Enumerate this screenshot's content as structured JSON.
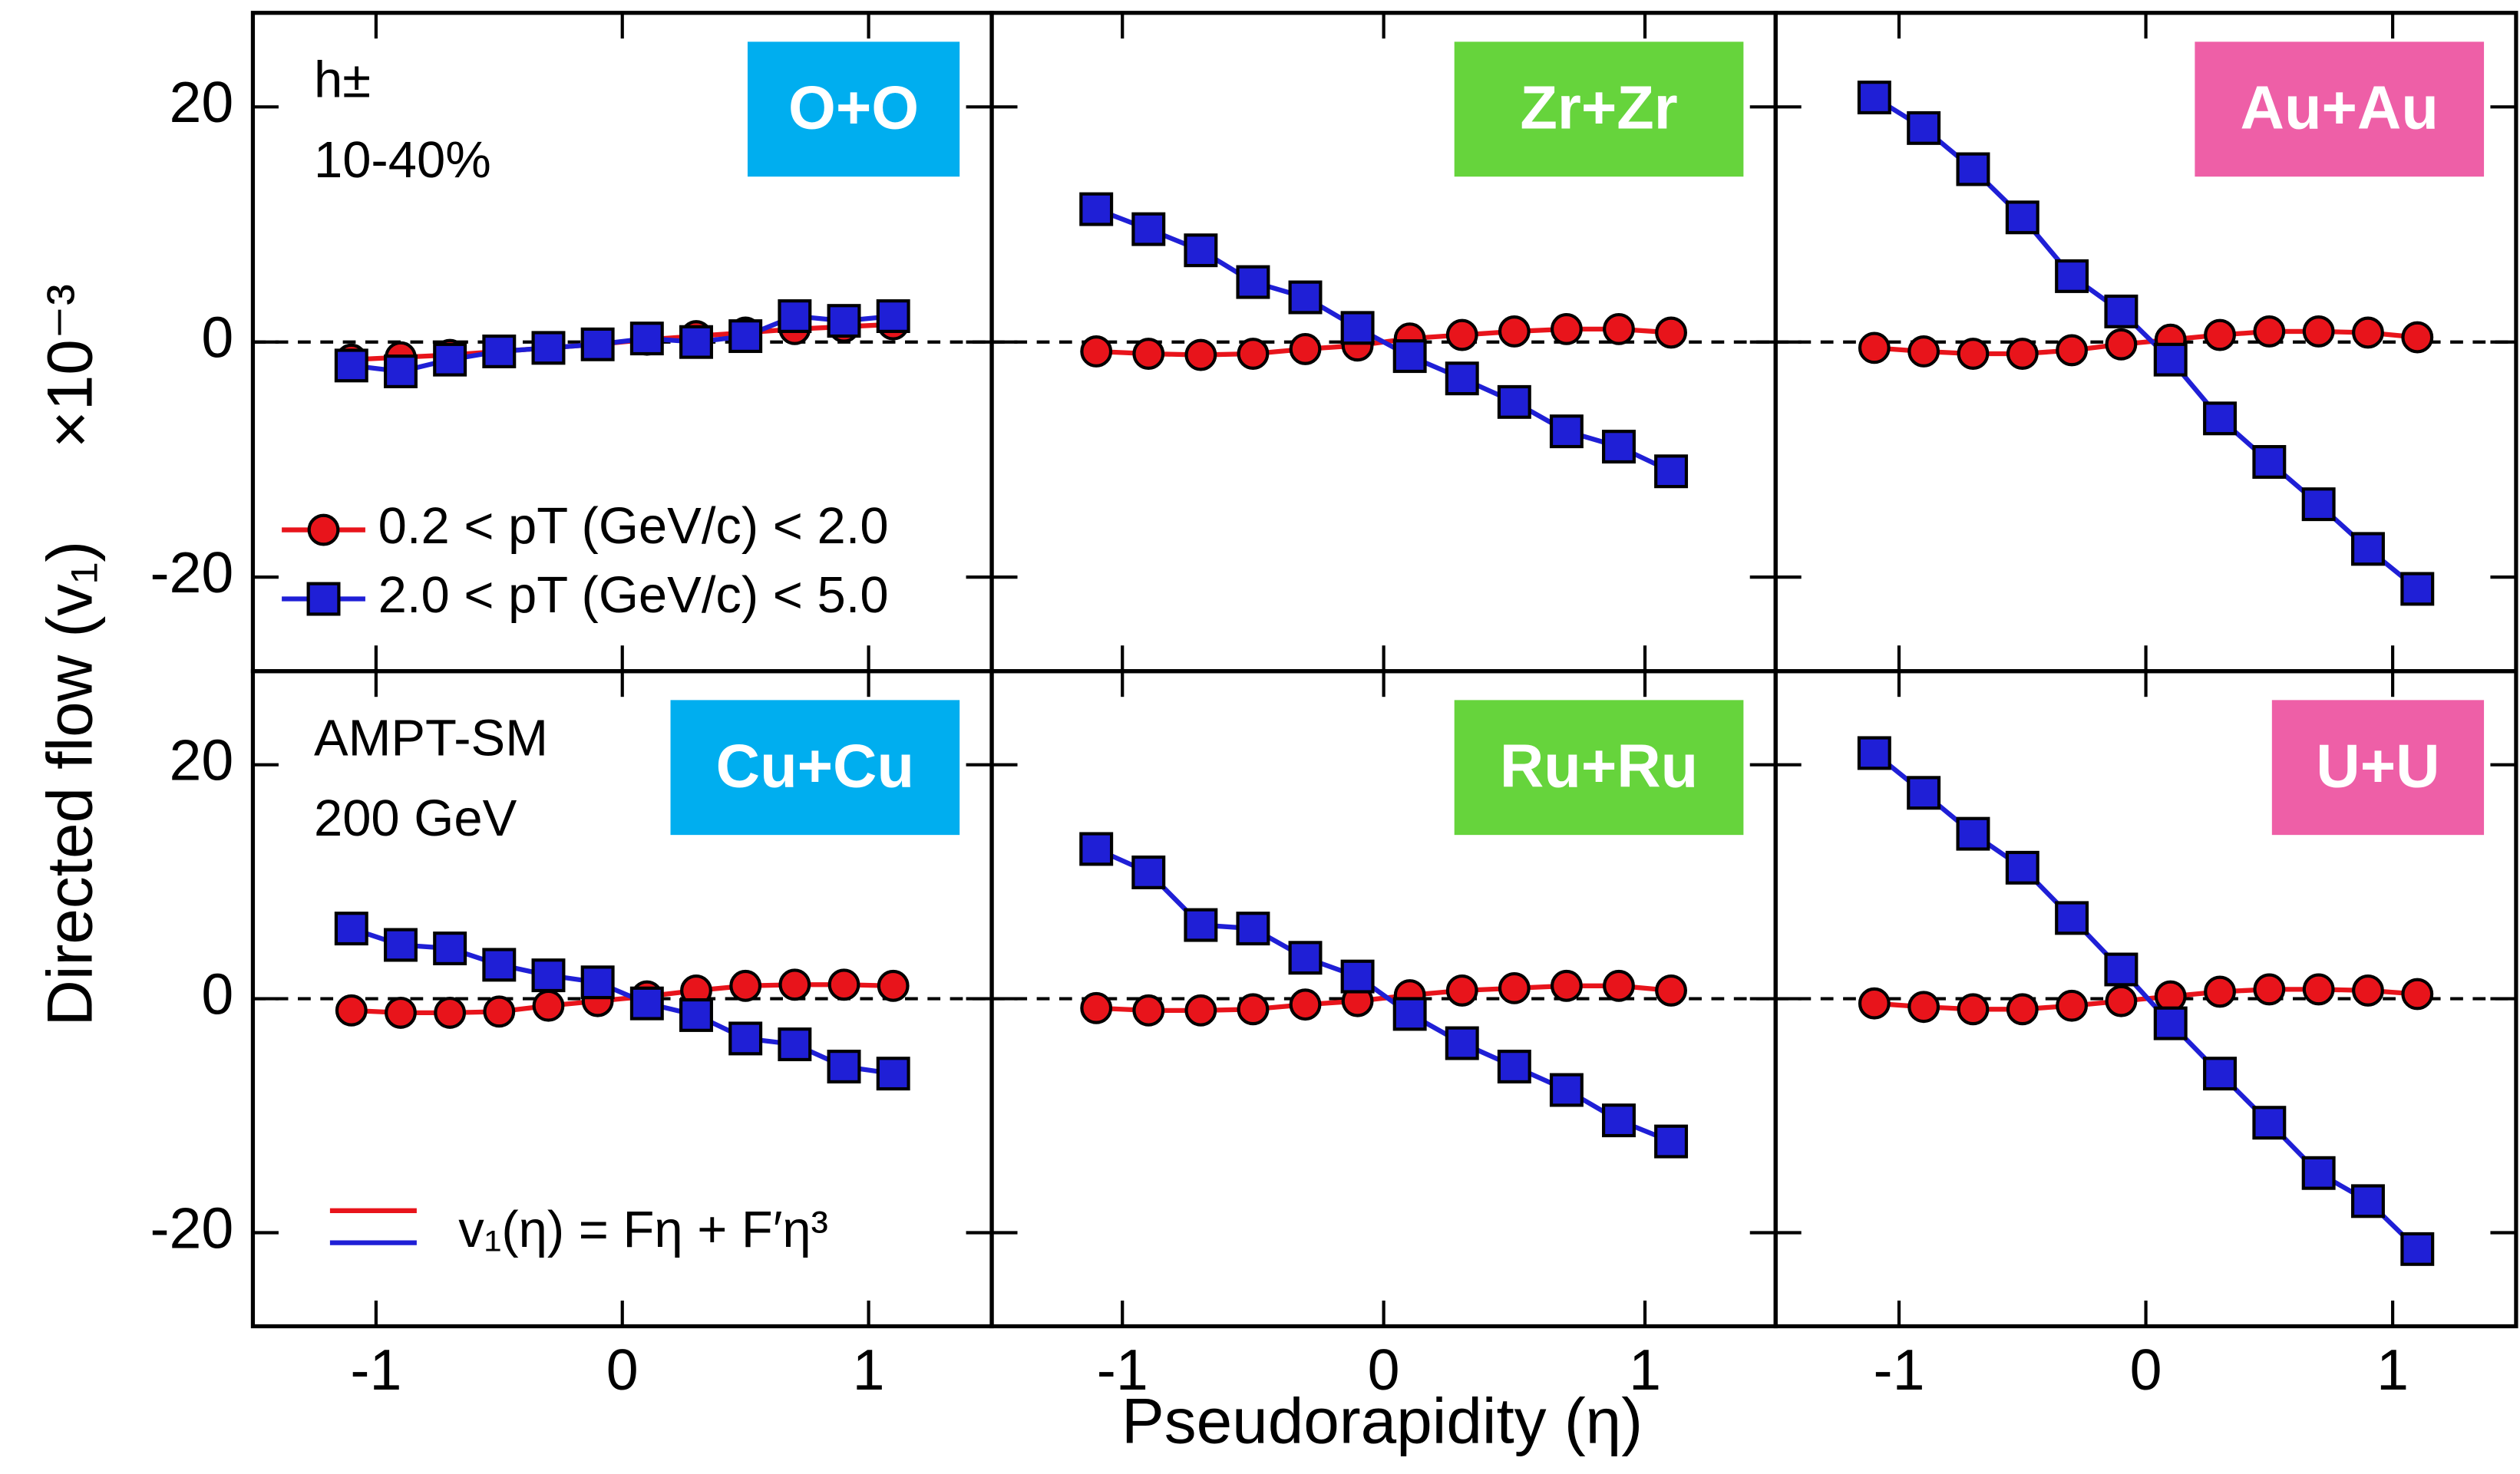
{
  "figure": {
    "xlabel": "Pseudorapidity (η)",
    "ylabel": "Directed flow (v₁)",
    "ylabel_scale": "×10⁻³"
  },
  "chart_data": [
    {
      "type": "line",
      "title": "O+O",
      "title_color": "#00aeef",
      "annotations": [
        "h±",
        "10-40%"
      ],
      "x": [
        -1.1,
        -0.9,
        -0.7,
        -0.5,
        -0.3,
        -0.1,
        0.1,
        0.3,
        0.5,
        0.7,
        0.9,
        1.1
      ],
      "series": [
        {
          "name": "0.2 < pT (GeV/c) < 2.0",
          "color": "#e8141b",
          "marker": "circle",
          "values": [
            -1.5,
            -1.3,
            -1.1,
            -0.8,
            -0.5,
            -0.2,
            0.2,
            0.5,
            0.8,
            1.1,
            1.3,
            1.5
          ]
        },
        {
          "name": "2.0 < pT (GeV/c) < 5.0",
          "color": "#1f1fd6",
          "marker": "square",
          "values": [
            -2,
            -2.5,
            -1.5,
            -0.8,
            -0.5,
            -0.2,
            0.3,
            0,
            0.5,
            2.2,
            1.8,
            2.2
          ]
        }
      ],
      "xlim": [
        -1.5,
        1.5
      ],
      "ylim": [
        -28,
        28
      ],
      "xticks": [
        -1,
        0,
        1
      ],
      "yticks": [
        -20,
        0,
        20
      ]
    },
    {
      "type": "line",
      "title": "Zr+Zr",
      "title_color": "#66d43c",
      "x": [
        -1.1,
        -0.9,
        -0.7,
        -0.5,
        -0.3,
        -0.1,
        0.1,
        0.3,
        0.5,
        0.7,
        0.9,
        1.1
      ],
      "series": [
        {
          "color": "#e8141b",
          "marker": "circle",
          "values": [
            -0.8,
            -1,
            -1.1,
            -1,
            -0.6,
            -0.3,
            0.3,
            0.6,
            0.9,
            1.1,
            1.1,
            0.8
          ]
        },
        {
          "color": "#1f1fd6",
          "marker": "square",
          "values": [
            11.3,
            9.6,
            7.8,
            5.1,
            3.8,
            1.2,
            -1.2,
            -3.1,
            -5.1,
            -7.6,
            -8.9,
            -11.0
          ]
        }
      ],
      "xlim": [
        -1.5,
        1.5
      ],
      "ylim": [
        -28,
        28
      ],
      "xticks": [
        -1,
        0,
        1
      ],
      "yticks": [
        -20,
        0,
        20
      ]
    },
    {
      "type": "line",
      "title": "Au+Au",
      "title_color": "#ee5fa7",
      "x": [
        -1.1,
        -0.9,
        -0.7,
        -0.5,
        -0.3,
        -0.1,
        0.1,
        0.3,
        0.5,
        0.7,
        0.9,
        1.1
      ],
      "series": [
        {
          "color": "#e8141b",
          "marker": "circle",
          "values": [
            -0.5,
            -0.8,
            -1,
            -1,
            -0.7,
            -0.2,
            0.2,
            0.6,
            0.9,
            0.9,
            0.8,
            0.4
          ]
        },
        {
          "color": "#1f1fd6",
          "marker": "square",
          "values": [
            20.8,
            18.2,
            14.7,
            10.6,
            5.6,
            2.6,
            -1.5,
            -6.5,
            -10.2,
            -13.8,
            -17.6,
            -21.0
          ]
        }
      ],
      "xlim": [
        -1.5,
        1.5
      ],
      "ylim": [
        -28,
        28
      ],
      "xticks": [
        -1,
        0,
        1
      ],
      "yticks": [
        -20,
        0,
        20
      ]
    },
    {
      "type": "line",
      "title": "Cu+Cu",
      "title_color": "#00aeef",
      "annotations": [
        "AMPT-SM",
        "200 GeV"
      ],
      "fit_label": "v₁(η) = Fη + F′η³",
      "x": [
        -1.1,
        -0.9,
        -0.7,
        -0.5,
        -0.3,
        -0.1,
        0.1,
        0.3,
        0.5,
        0.7,
        0.9,
        1.1
      ],
      "series": [
        {
          "color": "#e8141b",
          "marker": "circle",
          "values": [
            -1,
            -1.2,
            -1.2,
            -1.1,
            -0.6,
            -0.2,
            0.2,
            0.7,
            1.1,
            1.2,
            1.2,
            1.1
          ]
        },
        {
          "color": "#1f1fd6",
          "marker": "square",
          "values": [
            6.0,
            4.6,
            4.3,
            2.9,
            2.0,
            1.4,
            -0.4,
            -1.4,
            -3.4,
            -3.9,
            -5.8,
            -6.4
          ]
        }
      ],
      "xlim": [
        -1.5,
        1.5
      ],
      "ylim": [
        -28,
        28
      ],
      "xticks": [
        -1,
        0,
        1
      ],
      "yticks": [
        -20,
        0,
        20
      ]
    },
    {
      "type": "line",
      "title": "Ru+Ru",
      "title_color": "#66d43c",
      "x": [
        -1.1,
        -0.9,
        -0.7,
        -0.5,
        -0.3,
        -0.1,
        0.1,
        0.3,
        0.5,
        0.7,
        0.9,
        1.1
      ],
      "series": [
        {
          "color": "#e8141b",
          "marker": "circle",
          "values": [
            -0.8,
            -1,
            -1,
            -0.9,
            -0.5,
            -0.2,
            0.3,
            0.7,
            0.9,
            1.1,
            1.1,
            0.7
          ]
        },
        {
          "color": "#1f1fd6",
          "marker": "square",
          "values": [
            12.8,
            10.8,
            6.3,
            6.0,
            3.5,
            1.9,
            -1.3,
            -3.8,
            -5.8,
            -7.8,
            -10.4,
            -12.2
          ]
        }
      ],
      "xlim": [
        -1.5,
        1.5
      ],
      "ylim": [
        -28,
        28
      ],
      "xticks": [
        -1,
        0,
        1
      ],
      "yticks": [
        -20,
        0,
        20
      ]
    },
    {
      "type": "line",
      "title": "U+U",
      "title_color": "#ee5fa7",
      "x": [
        -1.1,
        -0.9,
        -0.7,
        -0.5,
        -0.3,
        -0.1,
        0.1,
        0.3,
        0.5,
        0.7,
        0.9,
        1.1
      ],
      "series": [
        {
          "color": "#e8141b",
          "marker": "circle",
          "values": [
            -0.4,
            -0.7,
            -0.9,
            -0.9,
            -0.6,
            -0.2,
            0.2,
            0.6,
            0.8,
            0.8,
            0.7,
            0.4
          ]
        },
        {
          "color": "#1f1fd6",
          "marker": "square",
          "values": [
            21.0,
            17.6,
            14.1,
            11.2,
            6.9,
            2.5,
            -2.1,
            -6.4,
            -10.6,
            -14.9,
            -17.3,
            -21.4
          ]
        }
      ],
      "xlim": [
        -1.5,
        1.5
      ],
      "ylim": [
        -28,
        28
      ],
      "xticks": [
        -1,
        0,
        1
      ],
      "yticks": [
        -20,
        0,
        20
      ]
    }
  ]
}
